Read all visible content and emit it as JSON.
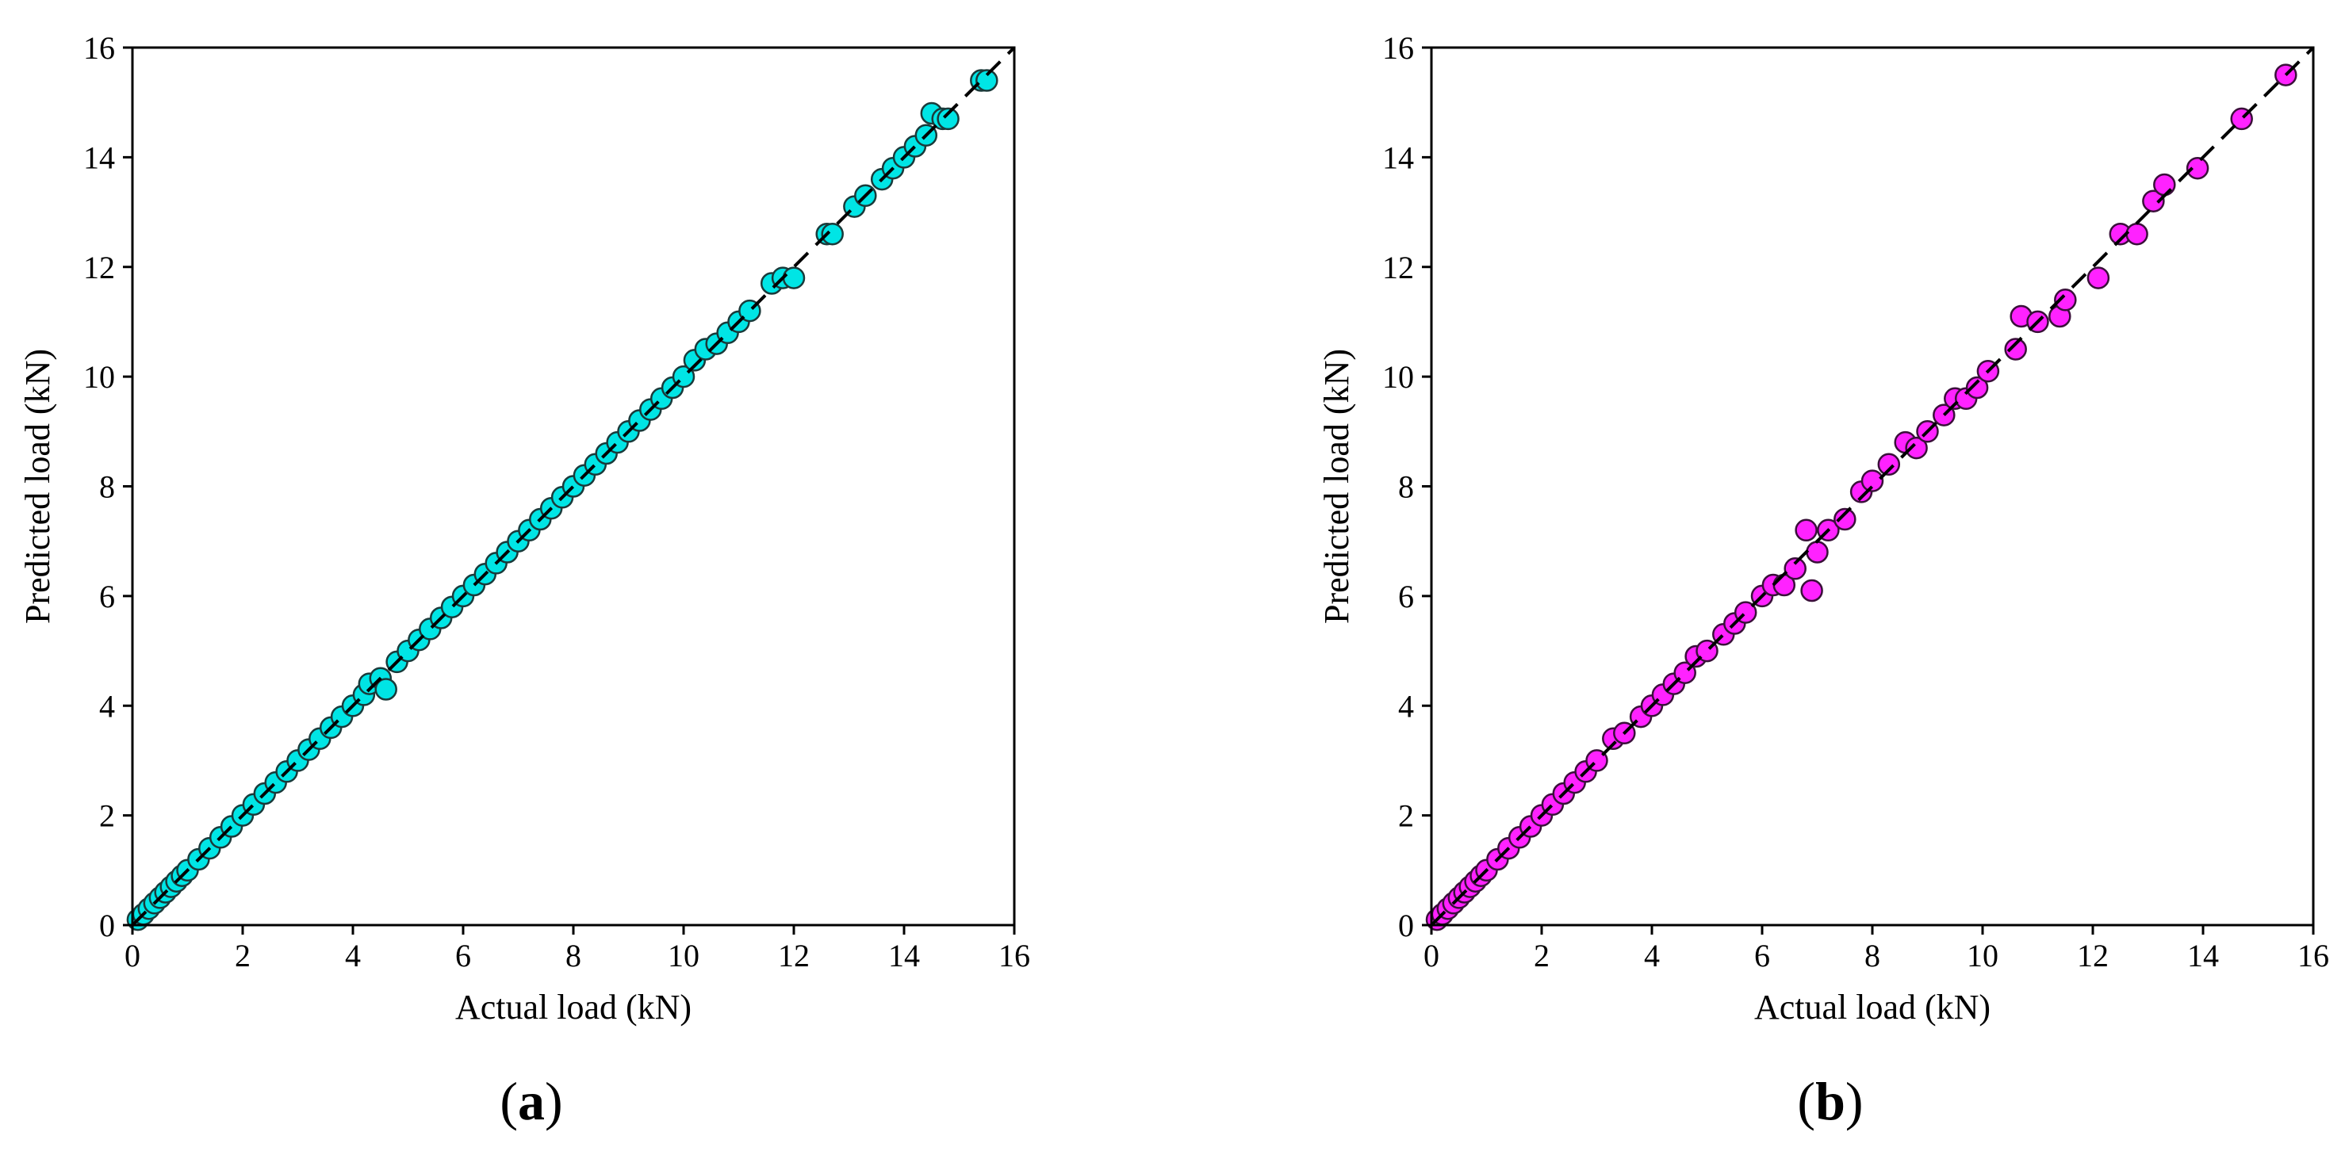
{
  "chart_data": [
    {
      "type": "scatter",
      "panel_label": "a",
      "xlabel": "Actual load (kN)",
      "ylabel": "Predicted load (kN)",
      "xlim": [
        0,
        16
      ],
      "ylim": [
        0,
        16
      ],
      "xticks": [
        0,
        2,
        4,
        6,
        8,
        10,
        12,
        14,
        16
      ],
      "yticks": [
        0,
        2,
        4,
        6,
        8,
        10,
        12,
        14,
        16
      ],
      "grid": false,
      "reference_line": {
        "style": "dashed",
        "color": "#000000",
        "from": [
          0,
          0
        ],
        "to": [
          16,
          16
        ]
      },
      "marker_color": "#00e5e5",
      "marker_edge": "#1a3a3a",
      "x": [
        0.1,
        0.2,
        0.3,
        0.4,
        0.5,
        0.6,
        0.7,
        0.8,
        0.9,
        1.0,
        1.2,
        1.4,
        1.6,
        1.8,
        2.0,
        2.2,
        2.4,
        2.6,
        2.8,
        3.0,
        3.2,
        3.4,
        3.6,
        3.8,
        4.0,
        4.2,
        4.3,
        4.5,
        4.6,
        4.8,
        5.0,
        5.2,
        5.4,
        5.6,
        5.8,
        6.0,
        6.2,
        6.4,
        6.6,
        6.8,
        7.0,
        7.2,
        7.4,
        7.6,
        7.8,
        8.0,
        8.2,
        8.4,
        8.6,
        8.8,
        9.0,
        9.2,
        9.4,
        9.6,
        9.8,
        10.0,
        10.2,
        10.4,
        10.6,
        10.8,
        11.0,
        11.2,
        11.6,
        11.8,
        12.0,
        12.6,
        12.7,
        13.1,
        13.3,
        13.6,
        13.8,
        14.0,
        14.2,
        14.4,
        14.5,
        14.7,
        14.8,
        15.4,
        15.5
      ],
      "y": [
        0.1,
        0.2,
        0.3,
        0.4,
        0.5,
        0.6,
        0.7,
        0.8,
        0.9,
        1.0,
        1.2,
        1.4,
        1.6,
        1.8,
        2.0,
        2.2,
        2.4,
        2.6,
        2.8,
        3.0,
        3.2,
        3.4,
        3.6,
        3.8,
        4.0,
        4.2,
        4.4,
        4.5,
        4.3,
        4.8,
        5.0,
        5.2,
        5.4,
        5.6,
        5.8,
        6.0,
        6.2,
        6.4,
        6.6,
        6.8,
        7.0,
        7.2,
        7.4,
        7.6,
        7.8,
        8.0,
        8.2,
        8.4,
        8.6,
        8.8,
        9.0,
        9.2,
        9.4,
        9.6,
        9.8,
        10.0,
        10.3,
        10.5,
        10.6,
        10.8,
        11.0,
        11.2,
        11.7,
        11.8,
        11.8,
        12.6,
        12.6,
        13.1,
        13.3,
        13.6,
        13.8,
        14.0,
        14.2,
        14.4,
        14.8,
        14.7,
        14.7,
        15.4,
        15.4
      ]
    },
    {
      "type": "scatter",
      "panel_label": "b",
      "xlabel": "Actual load (kN)",
      "ylabel": "Predicted load (kN)",
      "xlim": [
        0,
        16
      ],
      "ylim": [
        0,
        16
      ],
      "xticks": [
        0,
        2,
        4,
        6,
        8,
        10,
        12,
        14,
        16
      ],
      "yticks": [
        0,
        2,
        4,
        6,
        8,
        10,
        12,
        14,
        16
      ],
      "grid": false,
      "reference_line": {
        "style": "dashed",
        "color": "#000000",
        "from": [
          0,
          0
        ],
        "to": [
          16,
          16
        ]
      },
      "marker_color": "#ff22ff",
      "marker_edge": "#3a103a",
      "x": [
        0.1,
        0.2,
        0.3,
        0.4,
        0.5,
        0.6,
        0.7,
        0.8,
        0.9,
        1.0,
        1.2,
        1.4,
        1.6,
        1.8,
        2.0,
        2.2,
        2.4,
        2.6,
        2.8,
        3.0,
        3.3,
        3.5,
        3.8,
        4.0,
        4.2,
        4.4,
        4.6,
        4.8,
        5.0,
        5.3,
        5.5,
        5.7,
        6.0,
        6.2,
        6.4,
        6.6,
        6.8,
        6.9,
        7.0,
        7.2,
        7.5,
        7.8,
        8.0,
        8.3,
        8.6,
        8.8,
        9.0,
        9.3,
        9.5,
        9.7,
        9.9,
        10.1,
        10.6,
        10.7,
        11.0,
        11.4,
        11.5,
        12.1,
        12.5,
        12.8,
        13.1,
        13.3,
        13.9,
        14.7,
        15.5
      ],
      "y": [
        0.1,
        0.2,
        0.3,
        0.4,
        0.5,
        0.6,
        0.7,
        0.8,
        0.9,
        1.0,
        1.2,
        1.4,
        1.6,
        1.8,
        2.0,
        2.2,
        2.4,
        2.6,
        2.8,
        3.0,
        3.4,
        3.5,
        3.8,
        4.0,
        4.2,
        4.4,
        4.6,
        4.9,
        5.0,
        5.3,
        5.5,
        5.7,
        6.0,
        6.2,
        6.2,
        6.5,
        7.2,
        6.1,
        6.8,
        7.2,
        7.4,
        7.9,
        8.1,
        8.4,
        8.8,
        8.7,
        9.0,
        9.3,
        9.6,
        9.6,
        9.8,
        10.1,
        10.5,
        11.1,
        11.0,
        11.1,
        11.4,
        11.8,
        12.6,
        12.6,
        13.2,
        13.5,
        13.8,
        14.7,
        15.5
      ]
    }
  ]
}
